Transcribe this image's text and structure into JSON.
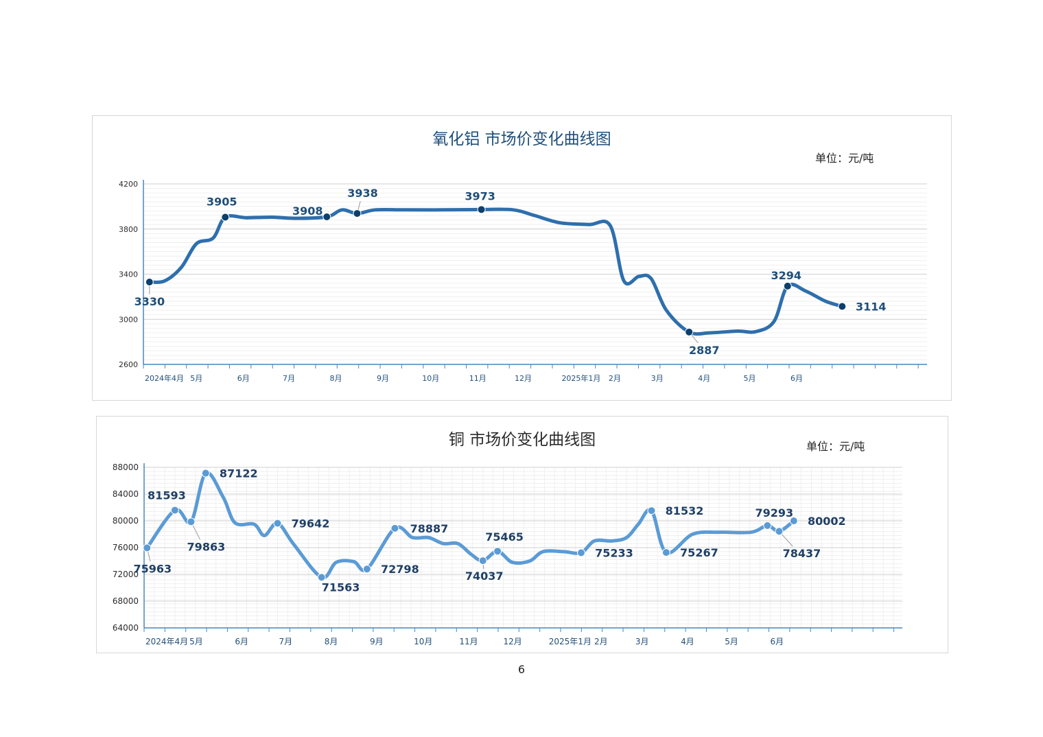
{
  "page_number": "6",
  "chart_data": [
    {
      "type": "line",
      "title": "氧化铝  市场价变化曲线图",
      "unit_label": "单位：元/吨",
      "ylim": [
        2600,
        4200
      ],
      "yticks": [
        2600,
        3000,
        3400,
        3800,
        4200
      ],
      "x_start": "2024-04-01",
      "x_end": "2025-08-31",
      "xtick_labels": [
        {
          "label": "2024年4月",
          "date": "2024-04-01"
        },
        {
          "label": "5月",
          "date": "2024-05-01"
        },
        {
          "label": "6月",
          "date": "2024-06-01"
        },
        {
          "label": "7月",
          "date": "2024-07-01"
        },
        {
          "label": "8月",
          "date": "2024-08-01"
        },
        {
          "label": "9月",
          "date": "2024-09-01"
        },
        {
          "label": "10月",
          "date": "2024-10-01"
        },
        {
          "label": "11月",
          "date": "2024-11-01"
        },
        {
          "label": "12月",
          "date": "2024-12-01"
        },
        {
          "label": "2025年1月",
          "date": "2025-01-01"
        },
        {
          "label": "2月",
          "date": "2025-02-01"
        },
        {
          "label": "3月",
          "date": "2025-03-01"
        },
        {
          "label": "4月",
          "date": "2025-04-01"
        },
        {
          "label": "5月",
          "date": "2025-05-01"
        },
        {
          "label": "6月",
          "date": "2025-06-01"
        }
      ],
      "series": [
        {
          "color": "#2e6fad",
          "points": [
            [
              "2024-04-05",
              3330
            ],
            [
              "2024-04-15",
              3340
            ],
            [
              "2024-04-26",
              3460
            ],
            [
              "2024-05-06",
              3670
            ],
            [
              "2024-05-17",
              3720
            ],
            [
              "2024-05-25",
              3905
            ],
            [
              "2024-06-08",
              3900
            ],
            [
              "2024-06-25",
              3905
            ],
            [
              "2024-07-10",
              3895
            ],
            [
              "2024-07-31",
              3908
            ],
            [
              "2024-08-10",
              3970
            ],
            [
              "2024-08-20",
              3938
            ],
            [
              "2024-09-01",
              3970
            ],
            [
              "2024-09-20",
              3970
            ],
            [
              "2024-10-15",
              3970
            ],
            [
              "2024-11-10",
              3973
            ],
            [
              "2024-12-01",
              3970
            ],
            [
              "2024-12-15",
              3920
            ],
            [
              "2025-01-01",
              3855
            ],
            [
              "2025-01-20",
              3840
            ],
            [
              "2025-02-03",
              3830
            ],
            [
              "2025-02-12",
              3340
            ],
            [
              "2025-02-22",
              3380
            ],
            [
              "2025-03-02",
              3360
            ],
            [
              "2025-03-12",
              3080
            ],
            [
              "2025-03-27",
              2887
            ],
            [
              "2025-04-10",
              2880
            ],
            [
              "2025-04-28",
              2895
            ],
            [
              "2025-05-10",
              2890
            ],
            [
              "2025-05-22",
              2980
            ],
            [
              "2025-05-31",
              3294
            ],
            [
              "2025-06-12",
              3250
            ],
            [
              "2025-06-25",
              3160
            ],
            [
              "2025-07-06",
              3114
            ]
          ],
          "markers": [
            {
              "date": "2024-04-05",
              "value": 3330,
              "label": "3330"
            },
            {
              "date": "2024-05-25",
              "value": 3905,
              "label": "3905"
            },
            {
              "date": "2024-07-31",
              "value": 3908,
              "label": "3908"
            },
            {
              "date": "2024-08-20",
              "value": 3938,
              "label": "3938"
            },
            {
              "date": "2024-11-10",
              "value": 3973,
              "label": "3973"
            },
            {
              "date": "2025-03-27",
              "value": 2887,
              "label": "2887"
            },
            {
              "date": "2025-05-31",
              "value": 3294,
              "label": "3294"
            },
            {
              "date": "2025-07-06",
              "value": 3114,
              "label": "3114"
            }
          ]
        }
      ]
    },
    {
      "type": "line",
      "title": "铜  市场价变化曲线图",
      "unit_label": "单位：元/吨",
      "ylim": [
        64000,
        88000
      ],
      "yticks": [
        64000,
        68000,
        72000,
        76000,
        80000,
        84000,
        88000
      ],
      "x_start": "2024-04-01",
      "x_end": "2025-08-31",
      "xtick_labels": [
        {
          "label": "2024年4月",
          "date": "2024-04-01"
        },
        {
          "label": "5月",
          "date": "2024-05-01"
        },
        {
          "label": "6月",
          "date": "2024-06-01"
        },
        {
          "label": "7月",
          "date": "2024-07-01"
        },
        {
          "label": "8月",
          "date": "2024-08-01"
        },
        {
          "label": "9月",
          "date": "2024-09-01"
        },
        {
          "label": "10月",
          "date": "2024-10-01"
        },
        {
          "label": "11月",
          "date": "2024-11-01"
        },
        {
          "label": "12月",
          "date": "2024-12-01"
        },
        {
          "label": "2025年1月",
          "date": "2025-01-01"
        },
        {
          "label": "2月",
          "date": "2025-02-01"
        },
        {
          "label": "3月",
          "date": "2025-03-01"
        },
        {
          "label": "4月",
          "date": "2025-04-01"
        },
        {
          "label": "5月",
          "date": "2025-05-01"
        },
        {
          "label": "6月",
          "date": "2025-06-01"
        }
      ],
      "series": [
        {
          "color": "#5b9bd5",
          "points": [
            [
              "2024-04-03",
              75963
            ],
            [
              "2024-04-22",
              81593
            ],
            [
              "2024-05-03",
              79863
            ],
            [
              "2024-05-13",
              87122
            ],
            [
              "2024-05-25",
              83500
            ],
            [
              "2024-06-02",
              79700
            ],
            [
              "2024-06-15",
              79500
            ],
            [
              "2024-06-22",
              77800
            ],
            [
              "2024-07-01",
              79642
            ],
            [
              "2024-07-12",
              76500
            ],
            [
              "2024-07-31",
              71563
            ],
            [
              "2024-08-10",
              73800
            ],
            [
              "2024-08-22",
              73900
            ],
            [
              "2024-08-31",
              72798
            ],
            [
              "2024-09-19",
              78887
            ],
            [
              "2024-10-01",
              77500
            ],
            [
              "2024-10-12",
              77500
            ],
            [
              "2024-10-22",
              76600
            ],
            [
              "2024-11-01",
              76600
            ],
            [
              "2024-11-10",
              75000
            ],
            [
              "2024-11-18",
              74037
            ],
            [
              "2024-11-28",
              75465
            ],
            [
              "2024-12-08",
              73800
            ],
            [
              "2024-12-20",
              74000
            ],
            [
              "2024-12-29",
              75400
            ],
            [
              "2025-01-12",
              75400
            ],
            [
              "2025-01-24",
              75233
            ],
            [
              "2025-02-02",
              77000
            ],
            [
              "2025-02-14",
              77000
            ],
            [
              "2025-02-24",
              77500
            ],
            [
              "2025-03-04",
              79500
            ],
            [
              "2025-03-13",
              81532
            ],
            [
              "2025-03-23",
              75267
            ],
            [
              "2025-04-10",
              78000
            ],
            [
              "2025-04-28",
              78300
            ],
            [
              "2025-05-20",
              78300
            ],
            [
              "2025-05-31",
              79293
            ],
            [
              "2025-06-08",
              78437
            ],
            [
              "2025-06-18",
              80002
            ]
          ],
          "markers": [
            {
              "date": "2024-04-03",
              "value": 75963,
              "label": "75963"
            },
            {
              "date": "2024-04-22",
              "value": 81593,
              "label": "81593"
            },
            {
              "date": "2024-05-03",
              "value": 79863,
              "label": "79863"
            },
            {
              "date": "2024-05-13",
              "value": 87122,
              "label": "87122"
            },
            {
              "date": "2024-07-01",
              "value": 79642,
              "label": "79642"
            },
            {
              "date": "2024-07-31",
              "value": 71563,
              "label": "71563"
            },
            {
              "date": "2024-08-31",
              "value": 72798,
              "label": "72798"
            },
            {
              "date": "2024-09-19",
              "value": 78887,
              "label": "78887"
            },
            {
              "date": "2024-11-18",
              "value": 74037,
              "label": "74037"
            },
            {
              "date": "2024-11-28",
              "value": 75465,
              "label": "75465"
            },
            {
              "date": "2025-01-24",
              "value": 75233,
              "label": "75233"
            },
            {
              "date": "2025-03-13",
              "value": 81532,
              "label": "81532"
            },
            {
              "date": "2025-03-23",
              "value": 75267,
              "label": "75267"
            },
            {
              "date": "2025-05-31",
              "value": 79293,
              "label": "79293"
            },
            {
              "date": "2025-06-08",
              "value": 78437,
              "label": "78437"
            },
            {
              "date": "2025-06-18",
              "value": 80002,
              "label": "80002"
            }
          ]
        }
      ]
    }
  ]
}
